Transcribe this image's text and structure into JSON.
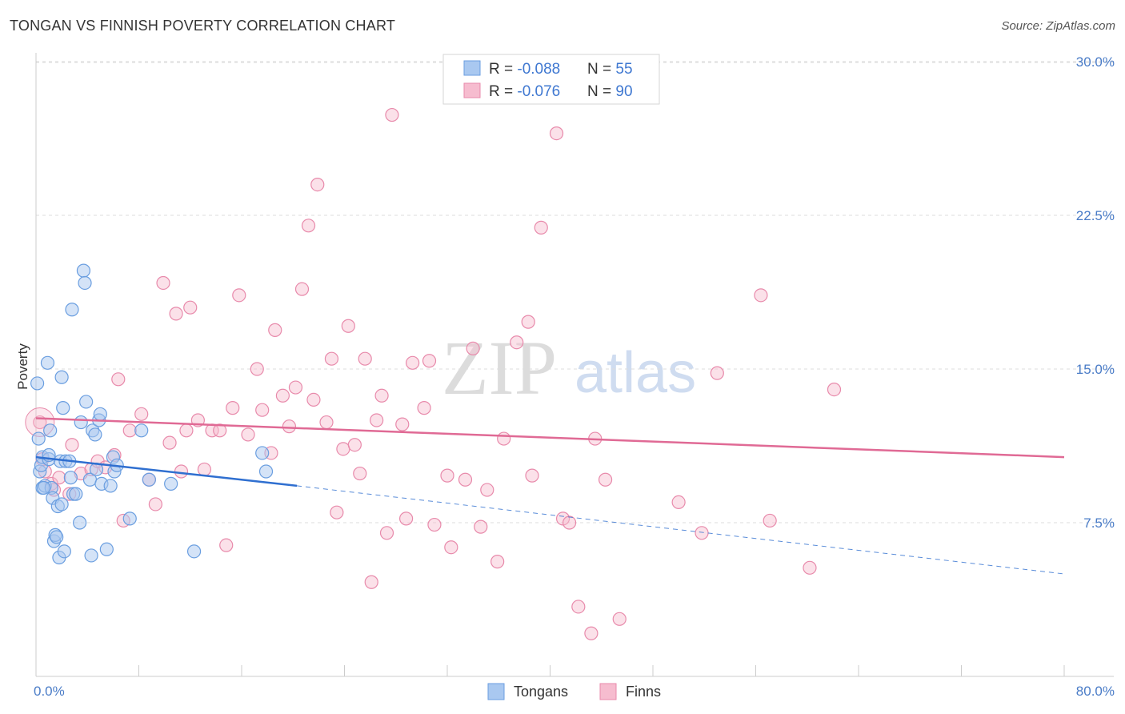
{
  "header": {
    "title": "TONGAN VS FINNISH POVERTY CORRELATION CHART",
    "source": "Source: ZipAtlas.com"
  },
  "watermark": {
    "zip": "ZIP",
    "atlas": "atlas"
  },
  "legend": {
    "rows": [
      {
        "r_label": "R = ",
        "r_value": "-0.088",
        "n_label": "N = ",
        "n_value": "55"
      },
      {
        "r_label": "R = ",
        "r_value": "-0.076",
        "n_label": "N = ",
        "n_value": "90"
      }
    ]
  },
  "colors": {
    "tongans_fill": "#a9c8f0",
    "tongans_stroke": "#6a9ee0",
    "tongans_line": "#2f6fd0",
    "finns_fill": "#f6bccf",
    "finns_stroke": "#e88aab",
    "finns_line": "#e06a95",
    "grid": "#dddddd",
    "axis_label": "#4a7cc7"
  },
  "chart_data": {
    "type": "scatter",
    "title": "TONGAN VS FINNISH POVERTY CORRELATION CHART",
    "xlabel": "",
    "ylabel": "Poverty",
    "xlim": [
      0,
      80
    ],
    "ylim": [
      0,
      31
    ],
    "x_tick_labels": [
      {
        "value": 0,
        "label": "0.0%"
      },
      {
        "value": 80,
        "label": "80.0%"
      }
    ],
    "y_tick_labels": [
      {
        "value": 7.5,
        "label": "7.5%"
      },
      {
        "value": 15,
        "label": "15.0%"
      },
      {
        "value": 22.5,
        "label": "22.5%"
      },
      {
        "value": 30,
        "label": "30.0%"
      }
    ],
    "series": [
      {
        "name": "Tongans",
        "r": -0.088,
        "n": 55,
        "trend": {
          "x": [
            0,
            20.3
          ],
          "y": [
            10.7,
            9.3
          ]
        },
        "trend_extension": {
          "x": [
            20.3,
            80
          ],
          "y": [
            9.3,
            5.0
          ]
        },
        "points": [
          [
            0.1,
            14.3
          ],
          [
            0.2,
            11.6
          ],
          [
            0.3,
            10.0
          ],
          [
            0.4,
            10.3
          ],
          [
            0.5,
            10.7
          ],
          [
            0.5,
            9.2
          ],
          [
            0.7,
            9.3
          ],
          [
            0.9,
            15.3
          ],
          [
            1.0,
            10.6
          ],
          [
            1.0,
            10.8
          ],
          [
            1.1,
            12.0
          ],
          [
            1.2,
            9.2
          ],
          [
            1.3,
            8.7
          ],
          [
            1.4,
            6.6
          ],
          [
            1.5,
            6.9
          ],
          [
            1.6,
            6.8
          ],
          [
            1.7,
            8.3
          ],
          [
            1.8,
            5.8
          ],
          [
            1.9,
            10.5
          ],
          [
            2.0,
            8.4
          ],
          [
            2.0,
            14.6
          ],
          [
            2.1,
            13.1
          ],
          [
            2.2,
            6.1
          ],
          [
            2.3,
            10.5
          ],
          [
            2.6,
            10.5
          ],
          [
            2.7,
            9.7
          ],
          [
            2.8,
            17.9
          ],
          [
            2.9,
            8.9
          ],
          [
            3.1,
            8.9
          ],
          [
            3.4,
            7.5
          ],
          [
            3.7,
            19.8
          ],
          [
            3.8,
            19.2
          ],
          [
            3.9,
            13.4
          ],
          [
            4.2,
            9.6
          ],
          [
            4.3,
            5.9
          ],
          [
            4.4,
            12.0
          ],
          [
            4.6,
            11.8
          ],
          [
            4.7,
            10.1
          ],
          [
            4.9,
            12.5
          ],
          [
            5.0,
            12.8
          ],
          [
            5.1,
            9.4
          ],
          [
            5.5,
            6.2
          ],
          [
            5.8,
            9.3
          ],
          [
            6.0,
            10.7
          ],
          [
            6.1,
            10.0
          ],
          [
            6.3,
            10.3
          ],
          [
            7.3,
            7.7
          ],
          [
            8.2,
            12.0
          ],
          [
            8.8,
            9.6
          ],
          [
            10.5,
            9.4
          ],
          [
            12.3,
            6.1
          ],
          [
            17.6,
            10.9
          ],
          [
            17.9,
            10.0
          ],
          [
            0.6,
            9.2
          ],
          [
            3.5,
            12.4
          ]
        ]
      },
      {
        "name": "Finns",
        "r": -0.076,
        "n": 90,
        "trend": {
          "x": [
            0,
            80
          ],
          "y": [
            12.6,
            10.7
          ]
        },
        "points": [
          [
            0.3,
            12.4
          ],
          [
            0.5,
            10.6
          ],
          [
            0.7,
            10.0
          ],
          [
            1.2,
            9.4
          ],
          [
            1.4,
            9.1
          ],
          [
            1.8,
            9.7
          ],
          [
            2.6,
            8.9
          ],
          [
            2.8,
            11.3
          ],
          [
            3.5,
            9.9
          ],
          [
            4.3,
            10.1
          ],
          [
            4.8,
            10.5
          ],
          [
            5.4,
            10.2
          ],
          [
            6.1,
            10.8
          ],
          [
            6.4,
            14.5
          ],
          [
            6.8,
            7.6
          ],
          [
            7.3,
            12.0
          ],
          [
            8.2,
            12.8
          ],
          [
            8.8,
            9.6
          ],
          [
            9.3,
            8.4
          ],
          [
            9.9,
            19.2
          ],
          [
            10.4,
            11.4
          ],
          [
            10.9,
            17.7
          ],
          [
            11.3,
            10.0
          ],
          [
            11.7,
            12.0
          ],
          [
            12.0,
            18.0
          ],
          [
            12.6,
            12.5
          ],
          [
            13.1,
            10.1
          ],
          [
            13.7,
            12.0
          ],
          [
            14.3,
            12.0
          ],
          [
            14.8,
            6.4
          ],
          [
            15.3,
            13.1
          ],
          [
            15.8,
            18.6
          ],
          [
            16.5,
            11.8
          ],
          [
            17.2,
            15.0
          ],
          [
            17.6,
            13.0
          ],
          [
            18.3,
            10.9
          ],
          [
            18.6,
            16.9
          ],
          [
            19.2,
            13.7
          ],
          [
            19.7,
            12.2
          ],
          [
            20.2,
            14.1
          ],
          [
            20.7,
            18.9
          ],
          [
            21.2,
            22.0
          ],
          [
            21.6,
            13.5
          ],
          [
            21.9,
            24.0
          ],
          [
            22.6,
            12.4
          ],
          [
            23.0,
            15.5
          ],
          [
            23.4,
            8.0
          ],
          [
            23.9,
            11.1
          ],
          [
            24.3,
            17.1
          ],
          [
            24.8,
            11.3
          ],
          [
            25.2,
            9.9
          ],
          [
            25.6,
            15.5
          ],
          [
            26.1,
            4.6
          ],
          [
            26.5,
            12.5
          ],
          [
            26.9,
            13.7
          ],
          [
            27.3,
            7.0
          ],
          [
            27.7,
            27.4
          ],
          [
            28.5,
            12.3
          ],
          [
            28.8,
            7.7
          ],
          [
            29.3,
            15.3
          ],
          [
            30.2,
            13.1
          ],
          [
            30.6,
            15.4
          ],
          [
            31.0,
            7.4
          ],
          [
            32.0,
            9.8
          ],
          [
            32.3,
            6.3
          ],
          [
            33.4,
            9.6
          ],
          [
            34.0,
            16.0
          ],
          [
            34.6,
            7.3
          ],
          [
            35.1,
            9.1
          ],
          [
            35.9,
            5.6
          ],
          [
            36.4,
            11.6
          ],
          [
            37.4,
            16.3
          ],
          [
            38.3,
            17.3
          ],
          [
            38.6,
            9.8
          ],
          [
            39.3,
            21.9
          ],
          [
            40.5,
            26.5
          ],
          [
            41.0,
            7.7
          ],
          [
            41.5,
            7.5
          ],
          [
            42.2,
            3.4
          ],
          [
            43.2,
            2.1
          ],
          [
            43.5,
            11.6
          ],
          [
            44.3,
            9.6
          ],
          [
            45.4,
            2.8
          ],
          [
            50.0,
            8.5
          ],
          [
            51.8,
            7.0
          ],
          [
            53.0,
            14.8
          ],
          [
            56.4,
            18.6
          ],
          [
            57.1,
            7.6
          ],
          [
            60.2,
            5.3
          ],
          [
            62.1,
            14.0
          ]
        ]
      }
    ]
  },
  "bottom_legend": [
    {
      "name": "Tongans"
    },
    {
      "name": "Finns"
    }
  ]
}
